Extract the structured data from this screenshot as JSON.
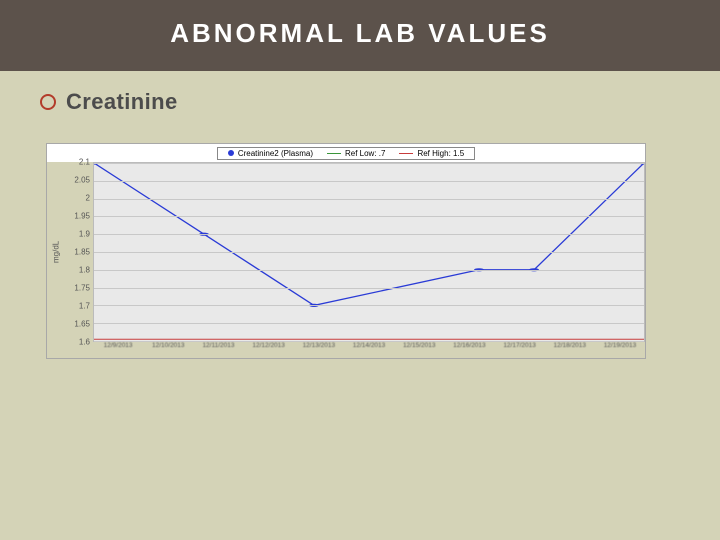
{
  "slide": {
    "background_color": "#d4d3b7",
    "title_band_color": "#5c524b",
    "title_text": "ABNORMAL LAB VALUES",
    "title_color": "#ffffff",
    "title_fontsize": 26
  },
  "bullet": {
    "circle_color": "#b33b2a",
    "label": "Creatinine",
    "label_color": "#4c4c4c",
    "label_fontsize": 22
  },
  "chart": {
    "type": "line",
    "outer_border_color": "#a8a8a8",
    "legend_bg": "#ffffff",
    "plot_bg": "#e9e9e9",
    "grid_color": "#c8c8c8",
    "axis_text_color": "#555555",
    "ylabel": "mg/dL",
    "ylim": [
      1.6,
      2.1
    ],
    "ytick_step": 0.05,
    "yticks": [
      "2.1",
      "2.05",
      "2",
      "1.95",
      "1.9",
      "1.85",
      "1.8",
      "1.75",
      "1.7",
      "1.65",
      "1.6"
    ],
    "x_categories": [
      "12/9/2013",
      "12/10/2013",
      "12/11/2013",
      "12/12/2013",
      "12/13/2013",
      "12/14/2013",
      "12/15/2013",
      "12/16/2013",
      "12/17/2013",
      "12/18/2013",
      "12/19/2013"
    ],
    "series": [
      {
        "name": "Creatinine2 (Plasma)",
        "color": "#2a3bd6",
        "marker": "dot",
        "marker_size": 3,
        "line_width": 1.3,
        "values": [
          2.1,
          null,
          1.9,
          null,
          1.7,
          null,
          null,
          1.8,
          1.8,
          null,
          2.1
        ]
      },
      {
        "name": "Ref Low: .7",
        "color": "#3a963a",
        "marker": "none",
        "line_width": 1,
        "constant": 0.7
      },
      {
        "name": "Ref High: 1.5",
        "color": "#c73c3c",
        "marker": "none",
        "line_width": 1,
        "constant": 1.5
      }
    ],
    "tick_fontsize": 8
  }
}
